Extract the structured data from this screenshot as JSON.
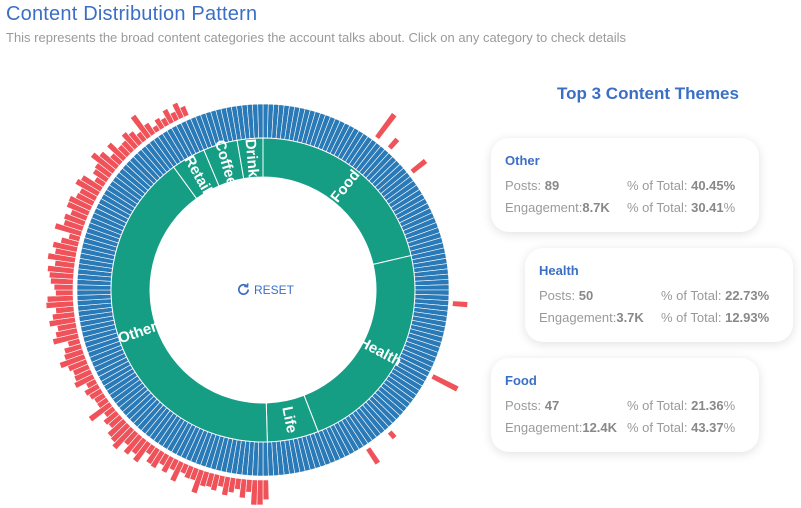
{
  "header": {
    "title": "Content Distribution Pattern",
    "subtitle": "This represents the broad content categories the account talks about. Click on any category to check details"
  },
  "reset_label": "RESET",
  "themes": {
    "title": "Top 3 Content Themes",
    "posts_label": "Posts:",
    "engagement_label": "Engagement:",
    "pct_label": "% of Total:",
    "items": [
      {
        "name": "Other",
        "posts": "89",
        "posts_pct": "40.45",
        "engagement": "8.7K",
        "engagement_pct": "30.41"
      },
      {
        "name": "Health",
        "posts": "50",
        "posts_pct": "22.73",
        "engagement": "3.7K",
        "engagement_pct": "12.93"
      },
      {
        "name": "Food",
        "posts": "47",
        "posts_pct": "21.36",
        "engagement": "12.4K",
        "engagement_pct": "43.37"
      }
    ]
  },
  "chart_data": {
    "type": "sunburst",
    "categories": [
      "Food",
      "Health",
      "Life",
      "Other",
      "Retail",
      "Coffee",
      "Drink"
    ],
    "values": [
      47,
      50,
      12,
      89,
      8,
      8,
      6
    ],
    "colors": {
      "category": "#169e84",
      "post": "#2a7ab8",
      "engagement": "#f0525a"
    }
  }
}
